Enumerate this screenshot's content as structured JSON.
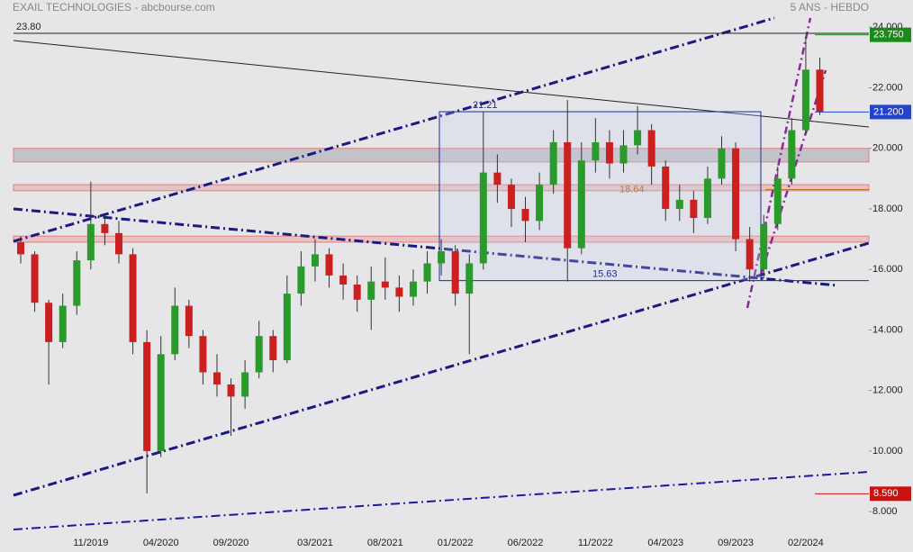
{
  "chart_data": {
    "type": "candlestick",
    "title": "EXAIL TECHNOLOGIES - abcbourse.com",
    "subtitle": "5 ANS - HEBDO",
    "categories": [
      null,
      null,
      null,
      null,
      null,
      "11/2019",
      null,
      null,
      null,
      null,
      "04/2020",
      null,
      null,
      null,
      null,
      "09/2020",
      null,
      null,
      null,
      null,
      null,
      "03/2021",
      null,
      null,
      null,
      null,
      "08/2021",
      null,
      null,
      null,
      null,
      "01/2022",
      null,
      null,
      null,
      null,
      "06/2022",
      null,
      null,
      null,
      null,
      "11/2022",
      null,
      null,
      null,
      null,
      "04/2023",
      null,
      null,
      null,
      null,
      "09/2023",
      null,
      null,
      null,
      null,
      "02/2024",
      null
    ],
    "open": [
      16.9,
      16.5,
      14.9,
      13.6,
      14.8,
      16.3,
      17.5,
      17.2,
      16.5,
      13.6,
      10.0,
      13.2,
      14.8,
      13.8,
      12.6,
      12.2,
      11.8,
      12.6,
      13.8,
      13.0,
      15.2,
      16.1,
      16.5,
      15.8,
      15.5,
      15.0,
      15.6,
      15.4,
      15.1,
      15.6,
      16.2,
      16.6,
      15.2,
      16.2,
      19.2,
      18.8,
      18.0,
      17.6,
      18.8,
      20.2,
      16.7,
      19.6,
      20.2,
      19.5,
      20.1,
      20.6,
      19.4,
      18.0,
      18.3,
      17.7,
      19.0,
      20.0,
      17.0,
      16.0,
      17.5,
      19.0,
      20.6,
      22.6
    ],
    "high": [
      17.1,
      16.6,
      15.0,
      15.2,
      16.6,
      18.9,
      17.8,
      17.6,
      16.7,
      14.0,
      13.8,
      15.4,
      15.0,
      14.0,
      13.2,
      12.4,
      13.0,
      14.3,
      14.0,
      15.8,
      16.6,
      17.0,
      16.7,
      16.2,
      15.8,
      16.1,
      16.4,
      15.8,
      16.0,
      16.6,
      17.0,
      16.8,
      16.5,
      21.2,
      19.8,
      19.0,
      18.4,
      19.2,
      20.6,
      21.6,
      20.2,
      21.0,
      20.6,
      20.6,
      21.4,
      20.8,
      19.6,
      18.8,
      18.6,
      19.4,
      20.4,
      20.2,
      17.4,
      17.8,
      19.4,
      21.0,
      23.7,
      23.0
    ],
    "low": [
      16.2,
      14.6,
      12.2,
      13.4,
      14.5,
      16.0,
      16.8,
      16.2,
      13.2,
      8.6,
      9.8,
      13.0,
      13.4,
      12.2,
      11.8,
      10.5,
      11.4,
      12.4,
      12.6,
      12.9,
      14.8,
      15.6,
      15.4,
      15.0,
      14.6,
      14.0,
      15.0,
      14.6,
      14.8,
      15.2,
      15.8,
      14.8,
      13.2,
      16.0,
      18.2,
      17.4,
      16.9,
      17.3,
      18.5,
      15.6,
      16.5,
      19.2,
      19.0,
      19.2,
      19.8,
      18.8,
      17.6,
      17.6,
      17.2,
      17.5,
      18.8,
      16.6,
      15.6,
      15.7,
      17.3,
      18.8,
      20.5,
      21.1
    ],
    "close": [
      16.5,
      14.9,
      13.6,
      14.8,
      16.3,
      17.5,
      17.2,
      16.5,
      13.6,
      10.0,
      13.2,
      14.8,
      13.8,
      12.6,
      12.2,
      11.8,
      12.6,
      13.8,
      13.0,
      15.2,
      16.1,
      16.5,
      15.8,
      15.5,
      15.0,
      15.6,
      15.4,
      15.1,
      15.6,
      16.2,
      16.6,
      15.2,
      16.2,
      19.2,
      18.8,
      18.0,
      17.6,
      18.8,
      20.2,
      16.7,
      19.6,
      20.2,
      19.5,
      20.1,
      20.6,
      19.4,
      18.0,
      18.3,
      17.7,
      19.0,
      20.0,
      17.0,
      16.0,
      17.5,
      19.0,
      20.6,
      22.6,
      21.2
    ],
    "up_color": "#2a9a2a",
    "down_color": "#cc2020",
    "ylim": [
      7.35,
      24.9
    ],
    "yticks": [
      {
        "value": 8,
        "label": "8.000"
      },
      {
        "value": 10,
        "label": "10.000"
      },
      {
        "value": 12,
        "label": "12.000"
      },
      {
        "value": 14,
        "label": "14.000"
      },
      {
        "value": 16,
        "label": "16.000"
      },
      {
        "value": 18,
        "label": "18.000"
      },
      {
        "value": 20,
        "label": "20.000"
      },
      {
        "value": 22,
        "label": "22.000"
      },
      {
        "value": 24,
        "label": "24.000"
      }
    ],
    "annotations": [
      {
        "value": 23.8,
        "label": "23.80"
      },
      {
        "value": 21.21,
        "label": "21.21"
      },
      {
        "value": 15.63,
        "label": "15.63"
      },
      {
        "value": 18.64,
        "label": "18.64"
      }
    ],
    "zones": [
      {
        "from": 19.55,
        "to": 20.0
      },
      {
        "from": 18.6,
        "to": 18.8
      },
      {
        "from": 16.9,
        "to": 17.1
      }
    ],
    "price_labels": [
      {
        "value": 23.75,
        "label": "23.750",
        "color": "#1a8a1a"
      },
      {
        "value": 21.2,
        "label": "21.200",
        "color": "#2244cc"
      },
      {
        "value": 8.59,
        "label": "8.590",
        "color": "#cc1111"
      }
    ]
  }
}
